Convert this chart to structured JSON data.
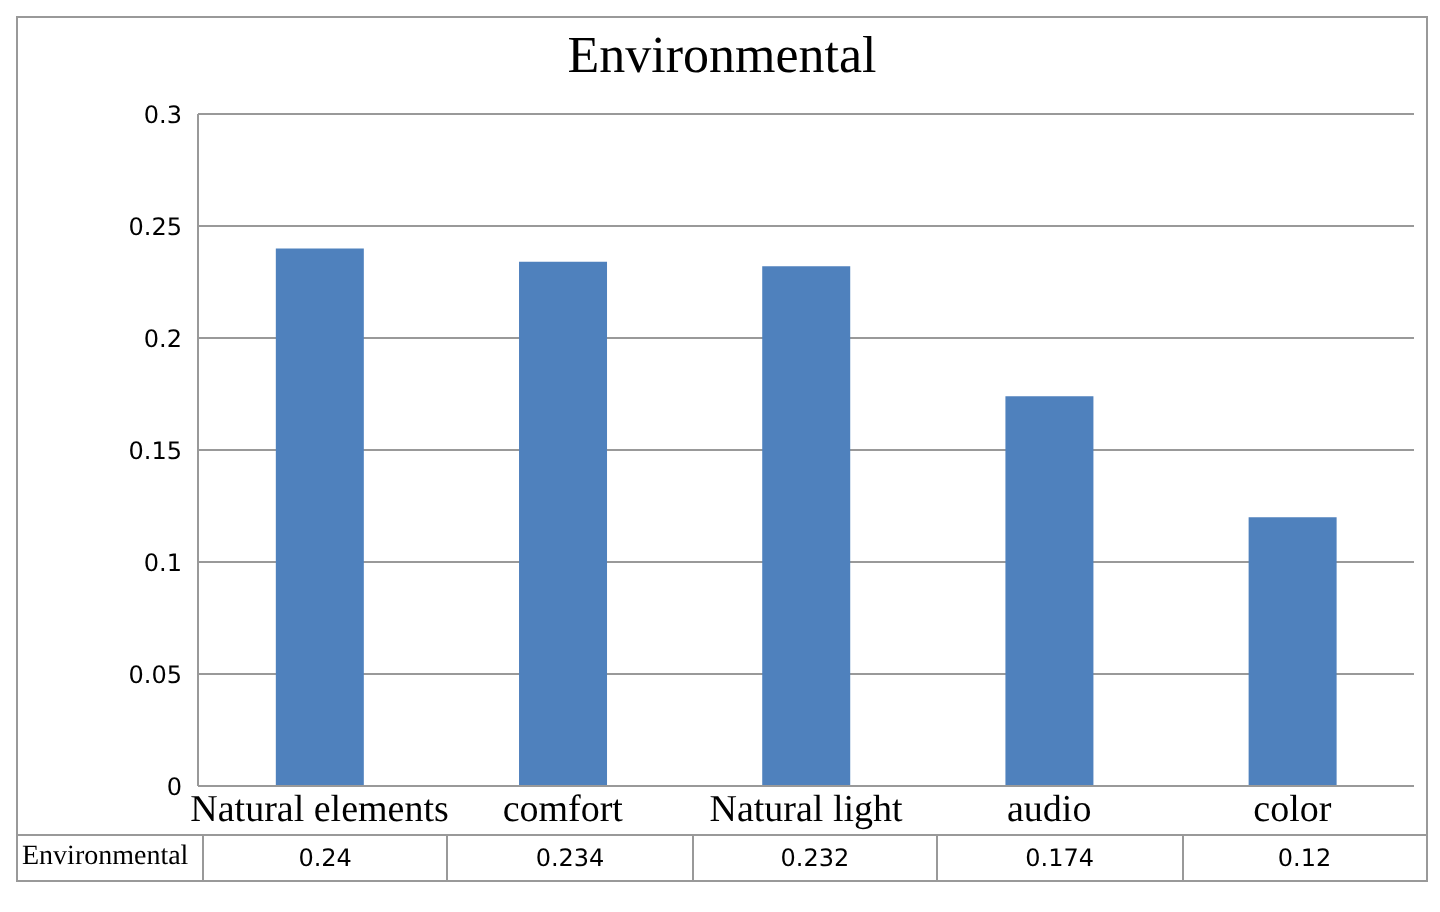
{
  "chart_data": {
    "type": "bar",
    "title": "Environmental",
    "categories": [
      "Natural elements",
      "comfort",
      "Natural light",
      "audio",
      "color"
    ],
    "series": [
      {
        "name": "Environmental",
        "color": "#4f81bd",
        "values": [
          0.24,
          0.234,
          0.232,
          0.174,
          0.12
        ]
      }
    ],
    "ylim": [
      0,
      0.3
    ],
    "yticks": [
      0,
      0.05,
      0.1,
      0.15,
      0.2,
      0.25,
      0.3
    ],
    "grid": "y",
    "data_labels": true
  }
}
